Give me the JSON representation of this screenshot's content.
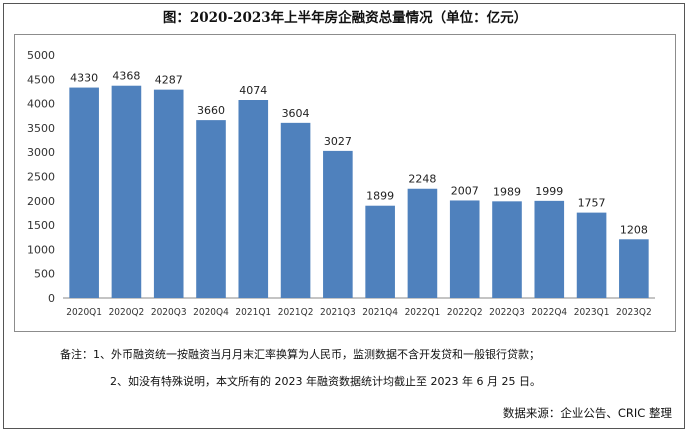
{
  "title": "图：2020-2023年上半年房企融资总量情况（单位：亿元）",
  "notes": {
    "line1": "备注：1、外币融资统一按融资当月月末汇率换算为人民币，监测数据不含开发贷和一般银行贷款；",
    "line2": "2、如没有特殊说明，本文所有的 2023 年融资数据统计均截止至 2023 年 6 月 25 日。",
    "source": "数据来源：企业公告、CRIC 整理"
  },
  "chart_data": {
    "type": "bar",
    "title": "图：2020-2023年上半年房企融资总量情况（单位：亿元）",
    "xlabel": "",
    "ylabel": "",
    "categories": [
      "2020Q1",
      "2020Q2",
      "2020Q3",
      "2020Q4",
      "2021Q1",
      "2021Q2",
      "2021Q3",
      "2021Q4",
      "2022Q1",
      "2022Q2",
      "2022Q3",
      "2022Q4",
      "2023Q1",
      "2023Q2"
    ],
    "values": [
      4330,
      4368,
      4287,
      3660,
      4074,
      3604,
      3027,
      1899,
      2248,
      2007,
      1989,
      1999,
      1757,
      1208
    ],
    "ylim": [
      0,
      5000
    ],
    "yticks": [
      0,
      500,
      1000,
      1500,
      2000,
      2500,
      3000,
      3500,
      4000,
      4500,
      5000
    ],
    "grid": false,
    "legend": "none",
    "bar_color": "#4F81BD"
  }
}
